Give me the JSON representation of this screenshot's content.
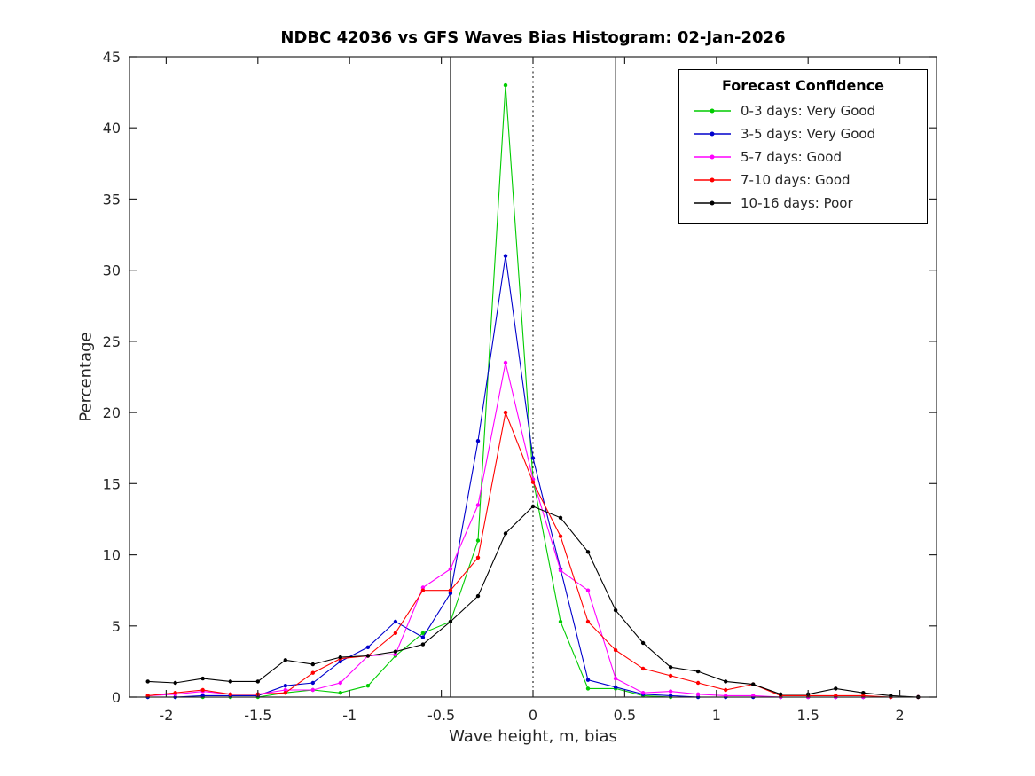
{
  "chart_data": {
    "type": "line",
    "title": "NDBC 42036 vs GFS Waves Bias Histogram: 02-Jan-2026",
    "xlabel": "Wave height, m, bias",
    "ylabel": "Percentage",
    "xlim": [
      -2.2,
      2.2
    ],
    "ylim": [
      0,
      45
    ],
    "xticks": [
      -2,
      -1.5,
      -1,
      -0.5,
      0,
      0.5,
      1,
      1.5,
      2
    ],
    "yticks": [
      0,
      5,
      10,
      15,
      20,
      25,
      30,
      35,
      40,
      45
    ],
    "grid": false,
    "legend_title": "Forecast Confidence",
    "legend_position": "top-right",
    "reference_lines": [
      {
        "x": -0.45,
        "style": "solid",
        "color": "#000000"
      },
      {
        "x": 0,
        "style": "dotted",
        "color": "#000000"
      },
      {
        "x": 0.45,
        "style": "solid",
        "color": "#000000"
      }
    ],
    "x": [
      -2.1,
      -1.95,
      -1.8,
      -1.65,
      -1.5,
      -1.35,
      -1.2,
      -1.05,
      -0.9,
      -0.75,
      -0.6,
      -0.45,
      -0.3,
      -0.15,
      0,
      0.15,
      0.3,
      0.45,
      0.6,
      0.75,
      0.9,
      1.05,
      1.2,
      1.35,
      1.5,
      1.65,
      1.8,
      1.95,
      2.1
    ],
    "series": [
      {
        "name": "0-3 days: Very Good",
        "color": "#00cc00",
        "values": [
          0,
          0,
          0,
          0,
          0,
          0.3,
          0.5,
          0.3,
          0.8,
          2.9,
          4.5,
          5.3,
          11.0,
          43.0,
          15.3,
          5.3,
          0.6,
          0.6,
          0.1,
          0,
          0,
          0,
          0,
          0,
          0,
          0,
          0,
          0,
          0
        ]
      },
      {
        "name": "3-5 days: Very Good",
        "color": "#0000cc",
        "values": [
          0,
          0,
          0.1,
          0.1,
          0.1,
          0.8,
          1.0,
          2.5,
          3.5,
          5.3,
          4.2,
          7.3,
          18.0,
          31.0,
          16.8,
          9.0,
          1.2,
          0.7,
          0.2,
          0.1,
          0,
          0,
          0,
          0,
          0,
          0,
          0,
          0,
          0
        ]
      },
      {
        "name": "5-7 days: Good",
        "color": "#ff00ff",
        "values": [
          0.1,
          0.2,
          0.4,
          0.2,
          0.2,
          0.5,
          0.5,
          1.0,
          2.9,
          3.0,
          7.7,
          9.0,
          13.5,
          23.5,
          15.3,
          8.9,
          7.5,
          1.3,
          0.3,
          0.4,
          0.2,
          0.1,
          0.1,
          0,
          0,
          0,
          0,
          0,
          0
        ]
      },
      {
        "name": "7-10 days: Good",
        "color": "#ff0000",
        "values": [
          0.1,
          0.3,
          0.5,
          0.2,
          0.2,
          0.3,
          1.7,
          2.7,
          2.9,
          4.5,
          7.5,
          7.5,
          9.8,
          20.0,
          15.1,
          11.3,
          5.3,
          3.3,
          2.0,
          1.5,
          1.0,
          0.5,
          0.9,
          0.1,
          0.1,
          0.1,
          0.1,
          0,
          0
        ]
      },
      {
        "name": "10-16 days: Poor",
        "color": "#000000",
        "values": [
          1.1,
          1.0,
          1.3,
          1.1,
          1.1,
          2.6,
          2.3,
          2.8,
          2.9,
          3.2,
          3.7,
          5.3,
          7.1,
          11.5,
          13.4,
          12.6,
          10.2,
          6.1,
          3.8,
          2.1,
          1.8,
          1.1,
          0.9,
          0.2,
          0.2,
          0.6,
          0.3,
          0.1,
          0
        ]
      }
    ]
  }
}
